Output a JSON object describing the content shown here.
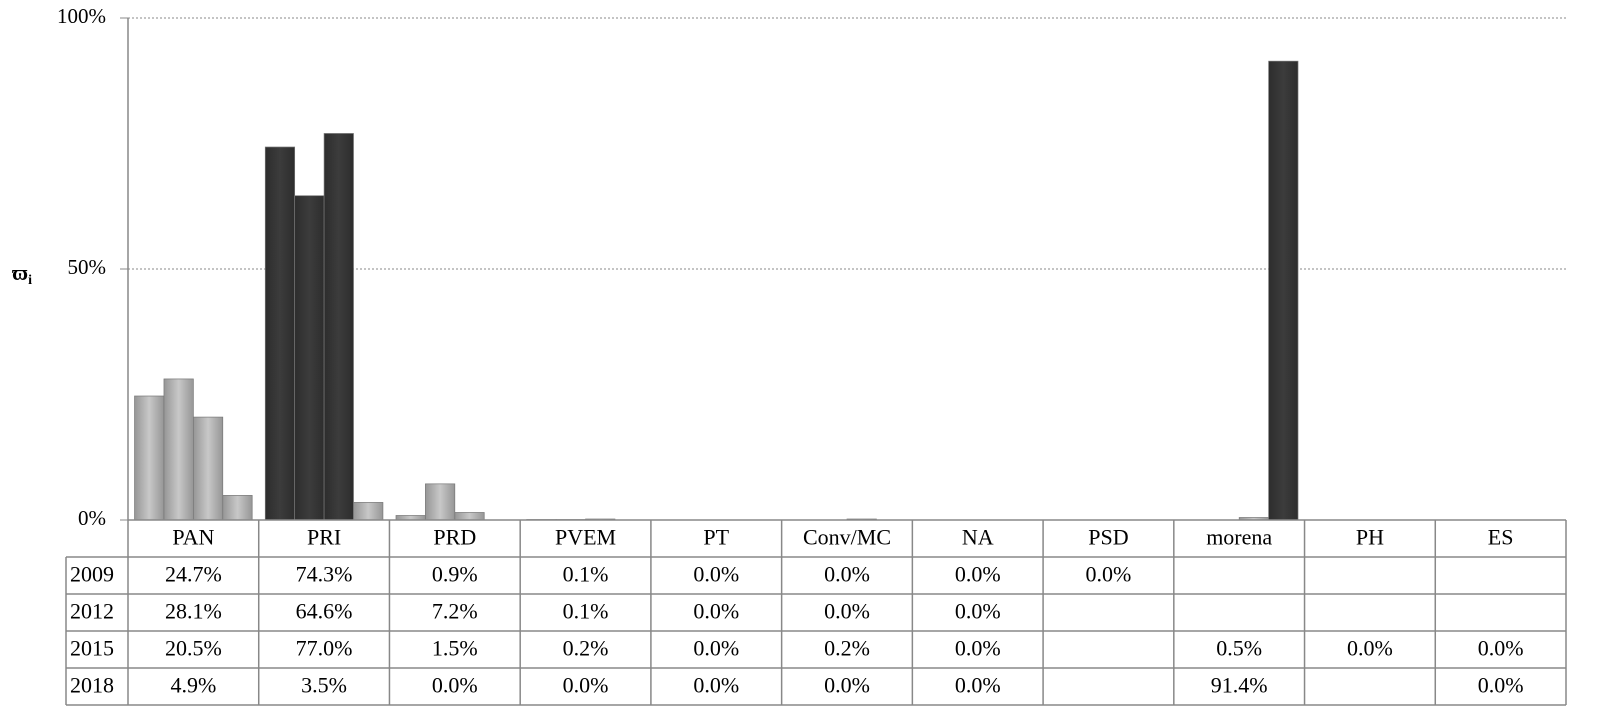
{
  "chart_data": {
    "type": "bar",
    "y_label": "ϖ",
    "y_label_sub": "i",
    "categories": [
      "PAN",
      "PRI",
      "PRD",
      "PVEM",
      "PT",
      "Conv/MC",
      "NA",
      "PSD",
      "morena",
      "PH",
      "ES"
    ],
    "series": [
      {
        "name": "2009",
        "values": [
          24.7,
          74.3,
          0.9,
          0.1,
          0.0,
          0.0,
          0.0,
          0.0,
          null,
          null,
          null
        ],
        "value_labels": [
          "24.7%",
          "74.3%",
          "0.9%",
          "0.1%",
          "0.0%",
          "0.0%",
          "0.0%",
          "0.0%",
          null,
          null,
          null
        ],
        "colors": [
          "#c8c8c8",
          "#3c3c3c",
          "#c8c8c8",
          "#c8c8c8",
          "#c8c8c8",
          "#c8c8c8",
          "#c8c8c8",
          "#c8c8c8",
          null,
          null,
          null
        ]
      },
      {
        "name": "2012",
        "values": [
          28.1,
          64.6,
          7.2,
          0.1,
          0.0,
          0.0,
          0.0,
          null,
          null,
          null,
          null
        ],
        "value_labels": [
          "28.1%",
          "64.6%",
          "7.2%",
          "0.1%",
          "0.0%",
          "0.0%",
          "0.0%",
          null,
          null,
          null,
          null
        ],
        "colors": [
          "#c8c8c8",
          "#3c3c3c",
          "#c8c8c8",
          "#c8c8c8",
          "#c8c8c8",
          "#c8c8c8",
          "#c8c8c8",
          null,
          null,
          null,
          null
        ]
      },
      {
        "name": "2015",
        "values": [
          20.5,
          77.0,
          1.5,
          0.2,
          0.0,
          0.2,
          0.0,
          null,
          0.5,
          0.0,
          0.0
        ],
        "value_labels": [
          "20.5%",
          "77.0%",
          "1.5%",
          "0.2%",
          "0.0%",
          "0.2%",
          "0.0%",
          null,
          "0.5%",
          "0.0%",
          "0.0%"
        ],
        "colors": [
          "#c8c8c8",
          "#3c3c3c",
          "#c8c8c8",
          "#c8c8c8",
          "#c8c8c8",
          "#c8c8c8",
          "#c8c8c8",
          null,
          "#c8c8c8",
          "#c8c8c8",
          "#c8c8c8"
        ]
      },
      {
        "name": "2018",
        "values": [
          4.9,
          3.5,
          0.0,
          0.0,
          0.0,
          0.0,
          0.0,
          null,
          91.4,
          null,
          0.0
        ],
        "value_labels": [
          "4.9%",
          "3.5%",
          "0.0%",
          "0.0%",
          "0.0%",
          "0.0%",
          "0.0%",
          null,
          "91.4%",
          null,
          "0.0%"
        ],
        "colors": [
          "#c8c8c8",
          "#c8c8c8",
          "#c8c8c8",
          "#c8c8c8",
          "#c8c8c8",
          "#c8c8c8",
          "#c8c8c8",
          null,
          "#3c3c3c",
          null,
          "#c8c8c8"
        ]
      }
    ],
    "ylim": [
      0,
      100
    ],
    "yticks": [
      {
        "value": 0,
        "label": "0%"
      },
      {
        "value": 50,
        "label": "50%"
      },
      {
        "value": 100,
        "label": "100%"
      }
    ],
    "grid": true
  }
}
